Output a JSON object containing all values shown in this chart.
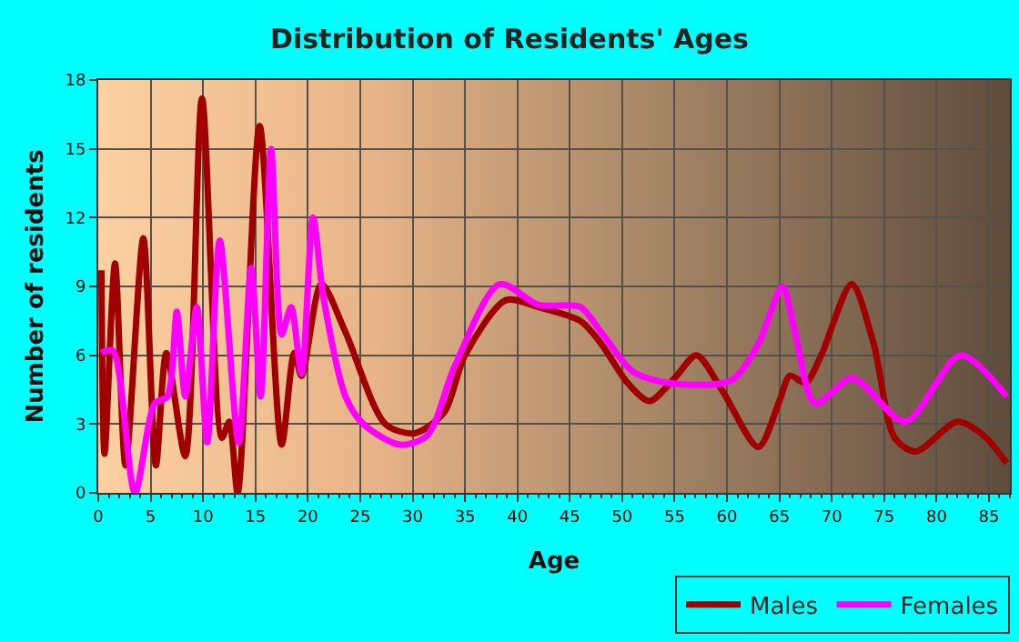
{
  "chart_data": {
    "type": "line",
    "title": "Distribution of Residents' Ages",
    "xlabel": "Age",
    "ylabel": "Number of residents",
    "xlim": [
      0,
      87
    ],
    "xticks": [
      0,
      5,
      10,
      15,
      20,
      25,
      30,
      35,
      40,
      45,
      50,
      55,
      60,
      65,
      70,
      75,
      80,
      85
    ],
    "ylim": [
      0,
      18
    ],
    "yticks": [
      0,
      3,
      6,
      9,
      12,
      15,
      18
    ],
    "grid": true,
    "legend": "bottom right",
    "marker": "none",
    "line_style": "solid",
    "series": [
      {
        "name": "Males",
        "color": "#a00000",
        "x": [
          0.3,
          0.6,
          1.6,
          2.6,
          4.3,
          5.5,
          6.5,
          8.3,
          9.9,
          11.8,
          12.5,
          13.3,
          15.4,
          17.5,
          18.7,
          19.4,
          21.3,
          23.6,
          27.4,
          30.2,
          33,
          35,
          38.9,
          42,
          46,
          48,
          50.5,
          52.6,
          55,
          57.1,
          59.5,
          63,
          65,
          66,
          67.5,
          69,
          71.9,
          74,
          76,
          78,
          82,
          84.5,
          86.7
        ],
        "values": [
          9.7,
          1.7,
          10,
          1.2,
          11.1,
          1.2,
          6.1,
          1.6,
          17.2,
          2.4,
          3.1,
          0,
          16,
          2.1,
          6.1,
          5.1,
          9.1,
          7,
          3,
          2.6,
          3.5,
          6,
          8.4,
          8.1,
          7.5,
          6.5,
          4.8,
          4,
          5,
          6,
          4.5,
          2,
          4,
          5.1,
          4.8,
          6,
          9.1,
          6.5,
          2.4,
          1.8,
          3.1,
          2.5,
          1.3
        ]
      },
      {
        "name": "Females",
        "color": "#ff00ff",
        "x": [
          0.3,
          1.4,
          3.5,
          5.4,
          6.6,
          7.5,
          8.3,
          9.4,
          10.4,
          11.6,
          13.4,
          14.6,
          15.5,
          16.5,
          17.5,
          18.4,
          19.4,
          20.5,
          21.5,
          23.6,
          25.3,
          28.8,
          31.4,
          34,
          38.3,
          42,
          46,
          48,
          51,
          54.3,
          60.4,
          63,
          65.3,
          66.5,
          68.4,
          72,
          77,
          82.3,
          86.7
        ],
        "values": [
          6.1,
          6.2,
          0,
          3.9,
          4.2,
          7.9,
          4.2,
          8.1,
          2.2,
          11,
          2.2,
          9.8,
          4.2,
          15,
          6.9,
          8.1,
          5.2,
          12,
          8.5,
          4.2,
          3,
          2.1,
          2.5,
          5.5,
          9.1,
          8.2,
          8.1,
          7,
          5.3,
          4.8,
          4.9,
          6.5,
          9,
          7,
          3.9,
          5,
          3.1,
          6,
          4.2
        ]
      }
    ]
  }
}
